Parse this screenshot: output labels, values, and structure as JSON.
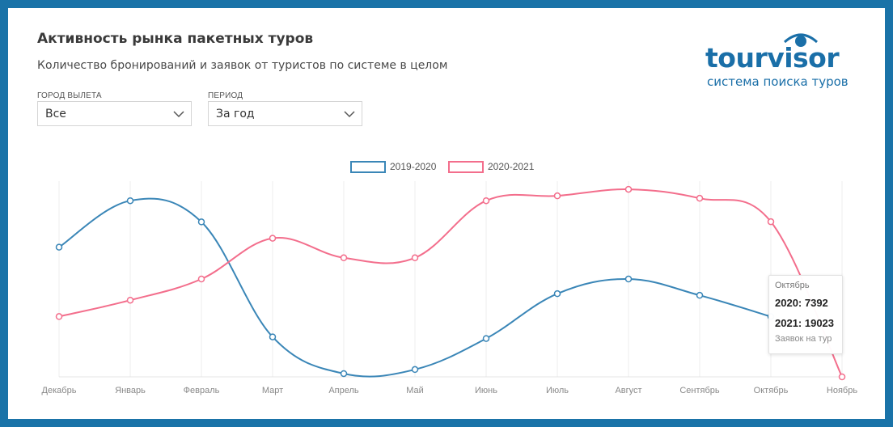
{
  "header": {
    "title": "Активность рынка пакетных туров",
    "subtitle": "Количество бронирований и заявок от туристов по системе в целом"
  },
  "filters": {
    "city_label": "ГОРОД ВЫЛЕТА",
    "city_value": "Все",
    "period_label": "ПЕРИОД",
    "period_value": "За год"
  },
  "logo": {
    "word": "tourvisor",
    "tagline": "система поиска туров"
  },
  "colors": {
    "series_2019": "#3a86b7",
    "series_2020": "#f36e8c",
    "frame": "#1a73a8"
  },
  "chart_data": {
    "type": "line",
    "categories": [
      "Декабрь",
      "Январь",
      "Февраль",
      "Март",
      "Апрель",
      "Май",
      "Июнь",
      "Июль",
      "Август",
      "Сентябрь",
      "Октябрь",
      "Ноябрь"
    ],
    "series": [
      {
        "name": "2019-2020",
        "values": [
          15900,
          21600,
          19000,
          4900,
          400,
          900,
          4700,
          10200,
          12000,
          10000,
          7392,
          null
        ]
      },
      {
        "name": "2020-2021",
        "values": [
          7400,
          9400,
          12000,
          17000,
          14600,
          14600,
          21600,
          22200,
          23000,
          21900,
          19023,
          0
        ]
      }
    ],
    "legend_position": "top-center",
    "grid": "vertical",
    "ylim": [
      0,
      24000
    ],
    "tooltip": {
      "title": "Октябрь",
      "row1": "2020: 7392",
      "row2": "2021: 19023",
      "footer": "Заявок на тур"
    }
  }
}
